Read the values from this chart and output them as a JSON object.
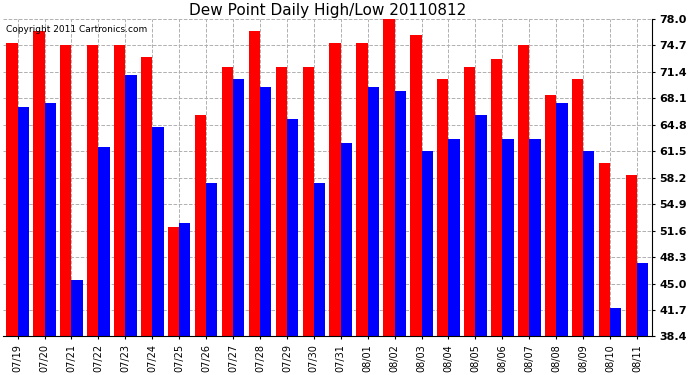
{
  "title": "Dew Point Daily High/Low 20110812",
  "copyright": "Copyright 2011 Cartronics.com",
  "dates": [
    "07/19",
    "07/20",
    "07/21",
    "07/22",
    "07/23",
    "07/24",
    "07/25",
    "07/26",
    "07/27",
    "07/28",
    "07/29",
    "07/30",
    "07/31",
    "08/01",
    "08/02",
    "08/03",
    "08/04",
    "08/05",
    "08/06",
    "08/07",
    "08/08",
    "08/09",
    "08/10",
    "08/11"
  ],
  "highs": [
    75.0,
    76.5,
    74.7,
    74.7,
    74.7,
    73.2,
    52.0,
    66.0,
    72.0,
    76.5,
    72.0,
    72.0,
    75.0,
    75.0,
    78.5,
    76.0,
    70.5,
    72.0,
    73.0,
    74.7,
    68.5,
    70.5,
    60.0,
    58.5
  ],
  "lows": [
    67.0,
    67.5,
    45.5,
    62.0,
    71.0,
    64.5,
    52.5,
    57.5,
    70.5,
    69.5,
    65.5,
    57.5,
    62.5,
    69.5,
    69.0,
    61.5,
    63.0,
    66.0,
    63.0,
    63.0,
    67.5,
    61.5,
    42.0,
    47.5
  ],
  "high_color": "#ff0000",
  "low_color": "#0000ff",
  "bg_color": "#ffffff",
  "grid_color": "#b0b0b0",
  "ylim_min": 38.4,
  "ylim_max": 78.0,
  "yticks": [
    38.4,
    41.7,
    45.0,
    48.3,
    51.6,
    54.9,
    58.2,
    61.5,
    64.8,
    68.1,
    71.4,
    74.7,
    78.0
  ],
  "title_fontsize": 11,
  "tick_fontsize": 7,
  "ytick_fontsize": 8,
  "copyright_fontsize": 6.5
}
